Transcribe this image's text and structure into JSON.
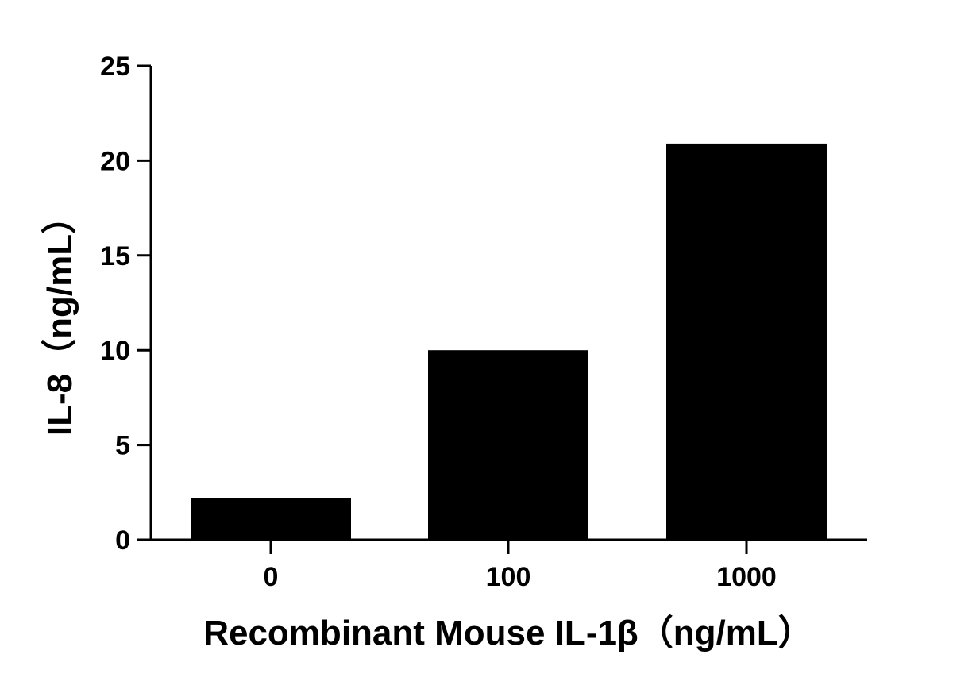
{
  "chart_data": {
    "type": "bar",
    "title": "",
    "categories": [
      "0",
      "100",
      "1000"
    ],
    "values": [
      2.2,
      10.0,
      20.9
    ],
    "xlabel": "Recombinant Mouse IL-1β（ng/mL）",
    "ylabel": "IL-8（ng/mL）",
    "ylim": [
      0,
      25
    ],
    "yticks": [
      0,
      5,
      10,
      15,
      20,
      25
    ],
    "ytick_labels": [
      "0",
      "5",
      "10",
      "15",
      "20",
      "25"
    ],
    "grid": false,
    "legend": "none",
    "bar_color": "#000000"
  }
}
